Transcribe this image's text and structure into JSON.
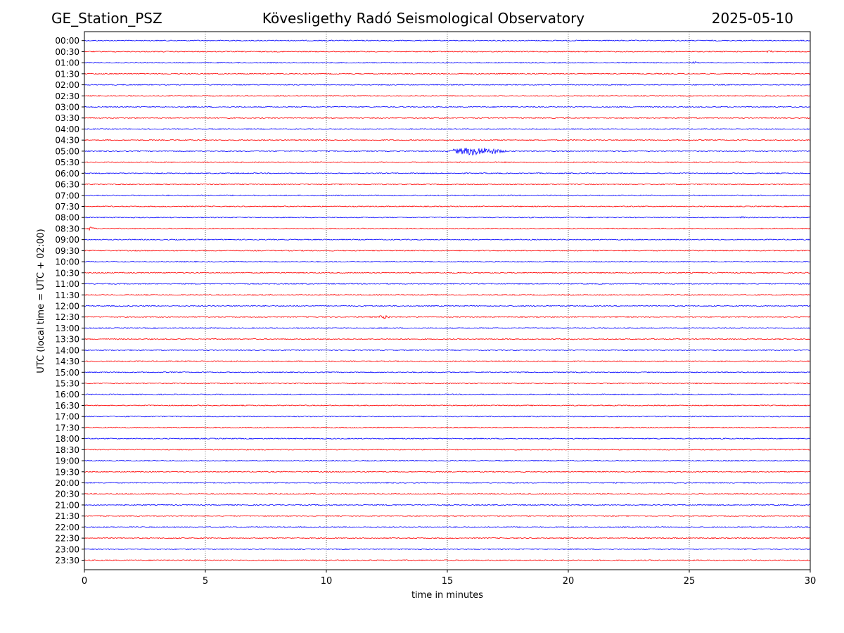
{
  "header": {
    "station": "GE_Station_PSZ",
    "observatory": "Kövesligethy Radó Seismological Observatory",
    "date": "2025-05-10"
  },
  "chart_data": {
    "type": "line",
    "title": "Kövesligethy Radó Seismological Observatory",
    "xlabel": "time in minutes",
    "ylabel": "UTC (local time = UTC + 02:00)",
    "xlim": [
      0,
      30
    ],
    "xticks": [
      0,
      5,
      10,
      15,
      20,
      25,
      30
    ],
    "grid": "vertical dotted at 5-minute ticks",
    "colors": {
      "even_trace": "#0000ff",
      "odd_trace": "#ff0000",
      "grid": "#000000"
    },
    "rows": [
      "00:00",
      "00:30",
      "01:00",
      "01:30",
      "02:00",
      "02:30",
      "03:00",
      "03:30",
      "04:00",
      "04:30",
      "05:00",
      "05:30",
      "06:00",
      "06:30",
      "07:00",
      "07:30",
      "08:00",
      "08:30",
      "09:00",
      "09:30",
      "10:00",
      "10:30",
      "11:00",
      "11:30",
      "12:00",
      "12:30",
      "13:00",
      "13:30",
      "14:00",
      "14:30",
      "15:00",
      "15:30",
      "16:00",
      "16:30",
      "17:00",
      "17:30",
      "18:00",
      "18:30",
      "19:00",
      "19:30",
      "20:00",
      "20:30",
      "21:00",
      "21:30",
      "22:00",
      "22:30",
      "23:00",
      "23:30"
    ],
    "events": [
      {
        "row": "00:30",
        "start_min": 28.2,
        "end_min": 28.7,
        "amplitude": 0.25
      },
      {
        "row": "01:00",
        "start_min": 25.1,
        "end_min": 25.5,
        "amplitude": 0.25
      },
      {
        "row": "05:00",
        "start_min": 15.0,
        "end_min": 19.2,
        "amplitude": 1.0
      },
      {
        "row": "08:00",
        "start_min": 27.1,
        "end_min": 27.5,
        "amplitude": 0.25
      },
      {
        "row": "08:30",
        "start_min": 0.1,
        "end_min": 0.7,
        "amplitude": 0.4
      },
      {
        "row": "12:30",
        "start_min": 12.1,
        "end_min": 13.1,
        "amplitude": 0.35
      }
    ]
  }
}
